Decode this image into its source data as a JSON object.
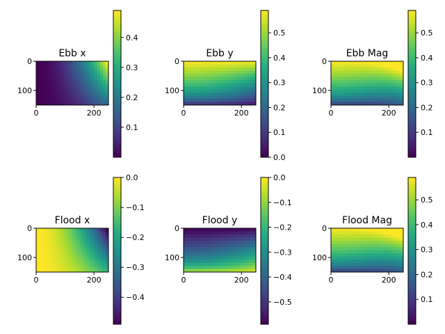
{
  "chart_data": [
    {
      "type": "heatmap",
      "title": "Ebb x",
      "xticks": [
        "0",
        "200"
      ],
      "yticks": [
        "0",
        "100"
      ],
      "xlim": [
        0,
        250
      ],
      "ylim": [
        0,
        150
      ],
      "colorbar": {
        "ticks": [
          "0.1",
          "0.2",
          "0.3",
          "0.4"
        ],
        "range": [
          0.0,
          0.49
        ]
      },
      "pattern": "x-gradient",
      "colormap": "viridis"
    },
    {
      "type": "heatmap",
      "title": "Ebb y",
      "xticks": [
        "0",
        "200"
      ],
      "yticks": [
        "0",
        "100"
      ],
      "xlim": [
        0,
        250
      ],
      "ylim": [
        0,
        150
      ],
      "colorbar": {
        "ticks": [
          "0.0",
          "0.1",
          "0.2",
          "0.3",
          "0.4",
          "0.5"
        ],
        "range": [
          0.0,
          0.59
        ]
      },
      "pattern": "y-gradient",
      "colormap": "viridis"
    },
    {
      "type": "heatmap",
      "title": "Ebb Mag",
      "xticks": [
        "0",
        "200"
      ],
      "yticks": [
        "0",
        "100"
      ],
      "xlim": [
        0,
        250
      ],
      "ylim": [
        0,
        150
      ],
      "colorbar": {
        "ticks": [
          "0.1",
          "0.2",
          "0.3",
          "0.4",
          "0.5"
        ],
        "range": [
          0.0,
          0.59
        ]
      },
      "pattern": "magnitude",
      "colormap": "viridis"
    },
    {
      "type": "heatmap",
      "title": "Flood x",
      "xticks": [
        "0",
        "200"
      ],
      "yticks": [
        "0",
        "100"
      ],
      "xlim": [
        0,
        250
      ],
      "ylim": [
        0,
        150
      ],
      "colorbar": {
        "ticks": [
          "0.0",
          "−0.1",
          "−0.2",
          "−0.3",
          "−0.4"
        ],
        "range": [
          -0.49,
          0.0
        ]
      },
      "pattern": "x-gradient-negative",
      "colormap": "viridis"
    },
    {
      "type": "heatmap",
      "title": "Flood y",
      "xticks": [
        "0",
        "200"
      ],
      "yticks": [
        "0",
        "100"
      ],
      "xlim": [
        0,
        250
      ],
      "ylim": [
        0,
        150
      ],
      "colorbar": {
        "ticks": [
          "0.0",
          "−0.1",
          "−0.2",
          "−0.3",
          "−0.4",
          "−0.5"
        ],
        "range": [
          -0.59,
          0.0
        ]
      },
      "pattern": "y-gradient-negative",
      "colormap": "viridis"
    },
    {
      "type": "heatmap",
      "title": "Flood Mag",
      "xticks": [
        "0",
        "200"
      ],
      "yticks": [
        "0",
        "100"
      ],
      "xlim": [
        0,
        250
      ],
      "ylim": [
        0,
        150
      ],
      "colorbar": {
        "ticks": [
          "0.1",
          "0.2",
          "0.3",
          "0.4",
          "0.5"
        ],
        "range": [
          0.0,
          0.59
        ]
      },
      "pattern": "magnitude",
      "colormap": "viridis"
    }
  ]
}
